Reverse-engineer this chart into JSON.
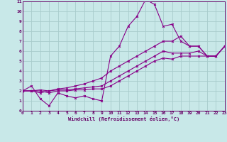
{
  "bg_color": "#c8e8e8",
  "grid_color": "#a8cccc",
  "line_color": "#880088",
  "spine_color": "#660066",
  "tick_color": "#660066",
  "xlabel": "Windchill (Refroidissement éolien,°C)",
  "xlim": [
    0,
    23
  ],
  "ylim": [
    0,
    11
  ],
  "xticks": [
    0,
    1,
    2,
    3,
    4,
    5,
    6,
    7,
    8,
    9,
    10,
    11,
    12,
    13,
    14,
    15,
    16,
    17,
    18,
    19,
    20,
    21,
    22,
    23
  ],
  "yticks": [
    0,
    1,
    2,
    3,
    4,
    5,
    6,
    7,
    8,
    9,
    10,
    11
  ],
  "lines": [
    {
      "x": [
        0,
        1,
        2,
        3,
        4,
        5,
        6,
        7,
        8,
        9,
        10,
        11,
        12,
        13,
        14,
        15,
        16,
        17,
        18,
        19,
        20,
        21,
        22,
        23
      ],
      "y": [
        2.0,
        2.5,
        1.2,
        0.5,
        1.8,
        1.5,
        1.3,
        1.5,
        1.2,
        1.0,
        5.5,
        6.5,
        8.5,
        9.5,
        11.2,
        10.7,
        8.5,
        8.7,
        7.0,
        6.5,
        6.5,
        5.5,
        5.5,
        6.5
      ]
    },
    {
      "x": [
        0,
        1,
        2,
        3,
        4,
        5,
        6,
        7,
        8,
        9,
        10,
        11,
        12,
        13,
        14,
        15,
        16,
        17,
        18,
        19,
        20,
        21,
        22,
        23
      ],
      "y": [
        2.0,
        2.0,
        2.1,
        2.0,
        2.2,
        2.3,
        2.5,
        2.7,
        3.0,
        3.3,
        4.0,
        4.5,
        5.0,
        5.5,
        6.0,
        6.5,
        7.0,
        7.0,
        7.5,
        6.5,
        6.5,
        5.5,
        5.5,
        6.5
      ]
    },
    {
      "x": [
        0,
        1,
        2,
        3,
        4,
        5,
        6,
        7,
        8,
        9,
        10,
        11,
        12,
        13,
        14,
        15,
        16,
        17,
        18,
        19,
        20,
        21,
        22,
        23
      ],
      "y": [
        2.0,
        2.0,
        1.8,
        2.0,
        2.1,
        2.1,
        2.2,
        2.3,
        2.4,
        2.5,
        3.0,
        3.5,
        4.0,
        4.5,
        5.0,
        5.5,
        6.0,
        5.8,
        5.8,
        5.8,
        6.0,
        5.5,
        5.5,
        6.5
      ]
    },
    {
      "x": [
        0,
        1,
        2,
        3,
        4,
        5,
        6,
        7,
        8,
        9,
        10,
        11,
        12,
        13,
        14,
        15,
        16,
        17,
        18,
        19,
        20,
        21,
        22,
        23
      ],
      "y": [
        2.0,
        2.0,
        2.0,
        1.8,
        2.0,
        2.0,
        2.1,
        2.1,
        2.2,
        2.2,
        2.5,
        3.0,
        3.5,
        4.0,
        4.5,
        5.0,
        5.3,
        5.2,
        5.5,
        5.5,
        5.5,
        5.5,
        5.5,
        6.5
      ]
    }
  ]
}
